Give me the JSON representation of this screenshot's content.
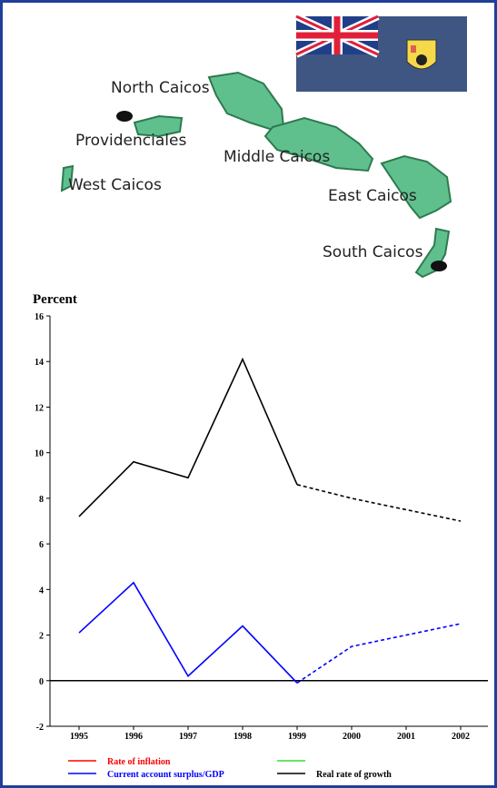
{
  "map": {
    "labels": [
      "North Caicos",
      "Providenciales",
      "Middle Caicos",
      "West Caicos",
      "East Caicos",
      "South Caicos"
    ]
  },
  "chart_data": {
    "type": "line",
    "y_label": "Percent",
    "categories": [
      "1995",
      "1996",
      "1997",
      "1998",
      "1999",
      "2000",
      "2001",
      "2002"
    ],
    "forecast_from": "1999",
    "series": [
      {
        "name": "Rate of inflation",
        "color": "#ff0000",
        "values": [
          null,
          null,
          null,
          null,
          null,
          null,
          null,
          null
        ]
      },
      {
        "name": null,
        "color": "#33dd33",
        "values": [
          null,
          null,
          null,
          null,
          null,
          null,
          null,
          null
        ]
      },
      {
        "name": "Current account surplus/GDP",
        "color": "#0000ff",
        "values": [
          2.1,
          4.3,
          0.2,
          2.4,
          -0.1,
          1.5,
          2.0,
          2.5
        ]
      },
      {
        "name": "Real rate of growth",
        "color": "#000000",
        "values": [
          7.2,
          9.6,
          8.9,
          14.1,
          8.6,
          8.0,
          7.5,
          7.0
        ]
      }
    ],
    "ylim": [
      -2,
      16
    ],
    "yticks": [
      -2,
      0,
      2,
      4,
      6,
      8,
      10,
      12,
      14,
      16
    ]
  }
}
